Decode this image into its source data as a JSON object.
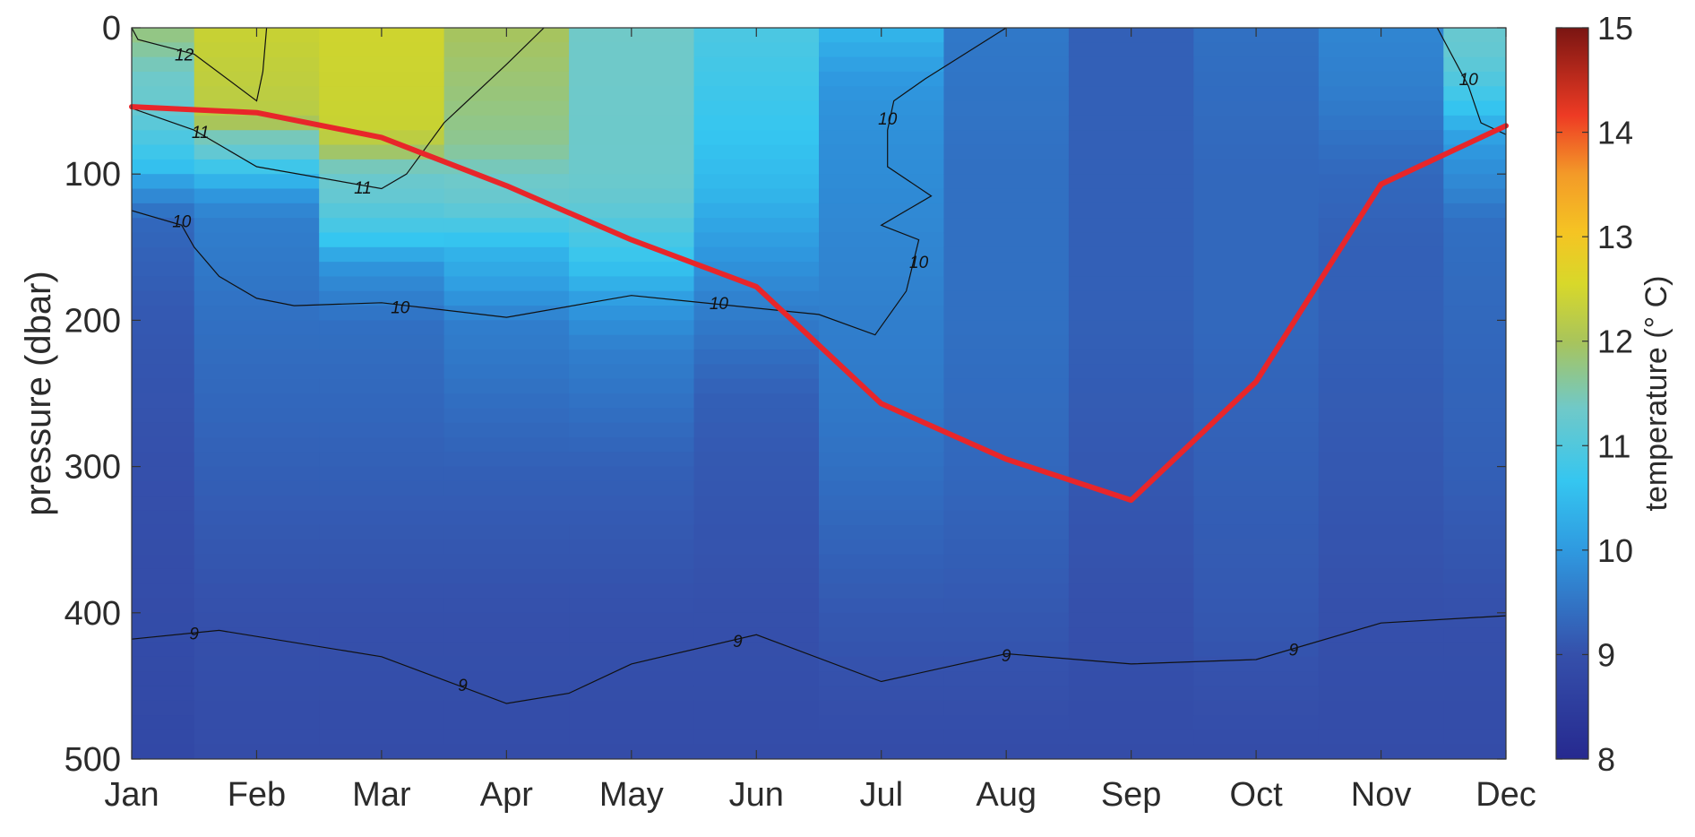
{
  "chart_data": {
    "type": "heatmap",
    "x_categories": [
      "Jan",
      "Feb",
      "Mar",
      "Apr",
      "May",
      "Jun",
      "Jul",
      "Aug",
      "Sep",
      "Oct",
      "Nov",
      "Dec"
    ],
    "y_ticks": [
      0,
      100,
      200,
      300,
      400,
      500
    ],
    "ylabel": "pressure (dbar)",
    "xlabel": "",
    "title": "",
    "ylim": [
      0,
      500
    ],
    "y_reversed": true,
    "colorbar": {
      "label": "temperature (° C)",
      "ticks": [
        8,
        9,
        10,
        11,
        12,
        13,
        14,
        15
      ],
      "range": [
        8,
        15
      ],
      "colormap": "parula"
    },
    "temperature_profiles": [
      {
        "month": "Jan",
        "pressure": [
          0,
          50,
          100,
          130,
          200,
          300,
          400,
          500
        ],
        "temp": [
          11.3,
          10.8,
          10.2,
          9.3,
          9.1,
          9.0,
          8.9,
          8.8
        ]
      },
      {
        "month": "Feb",
        "pressure": [
          0,
          60,
          90,
          130,
          200,
          300,
          400,
          500
        ],
        "temp": [
          11.8,
          11.6,
          10.5,
          9.6,
          9.4,
          9.2,
          9.0,
          8.9
        ]
      },
      {
        "month": "Mar",
        "pressure": [
          0,
          70,
          100,
          140,
          170,
          200,
          300,
          400,
          500
        ],
        "temp": [
          12.0,
          11.8,
          10.9,
          10.4,
          9.8,
          9.4,
          9.2,
          9.0,
          8.9
        ]
      },
      {
        "month": "Apr",
        "pressure": [
          0,
          80,
          110,
          150,
          180,
          200,
          300,
          400,
          500
        ],
        "temp": [
          11.4,
          11.2,
          10.9,
          10.2,
          10.0,
          9.6,
          9.2,
          9.0,
          8.9
        ]
      },
      {
        "month": "May",
        "pressure": [
          0,
          100,
          140,
          180,
          220,
          300,
          400,
          500
        ],
        "temp": [
          11.0,
          10.9,
          10.5,
          10.1,
          9.6,
          9.2,
          9.0,
          8.9
        ]
      },
      {
        "month": "Jun",
        "pressure": [
          0,
          110,
          150,
          190,
          250,
          300,
          400,
          500
        ],
        "temp": [
          10.5,
          10.2,
          10.0,
          9.6,
          9.2,
          9.1,
          9.0,
          8.9
        ]
      },
      {
        "month": "Jul",
        "pressure": [
          0,
          50,
          100,
          150,
          200,
          260,
          300,
          400,
          500
        ],
        "temp": [
          10.2,
          9.9,
          9.8,
          9.7,
          9.6,
          9.5,
          9.4,
          9.1,
          8.9
        ]
      },
      {
        "month": "Aug",
        "pressure": [
          0,
          100,
          200,
          300,
          400,
          500
        ],
        "temp": [
          9.5,
          9.4,
          9.4,
          9.3,
          9.1,
          8.9
        ]
      },
      {
        "month": "Sep",
        "pressure": [
          0,
          100,
          200,
          300,
          400,
          500
        ],
        "temp": [
          9.2,
          9.2,
          9.2,
          9.1,
          9.0,
          8.9
        ]
      },
      {
        "month": "Oct",
        "pressure": [
          0,
          100,
          200,
          300,
          400,
          500
        ],
        "temp": [
          9.4,
          9.3,
          9.3,
          9.2,
          9.1,
          8.9
        ]
      },
      {
        "month": "Nov",
        "pressure": [
          0,
          40,
          100,
          150,
          200,
          300,
          400,
          500
        ],
        "temp": [
          9.7,
          9.6,
          9.3,
          9.2,
          9.2,
          9.1,
          9.0,
          8.9
        ]
      },
      {
        "month": "Dec",
        "pressure": [
          0,
          30,
          70,
          110,
          130,
          200,
          300,
          400,
          500
        ],
        "temp": [
          10.8,
          10.6,
          10.1,
          9.7,
          9.4,
          9.3,
          9.2,
          9.0,
          8.9
        ]
      }
    ],
    "series": [
      {
        "type": "line",
        "color": "#e8262a",
        "x": [
          "Jan",
          "Feb",
          "Mar",
          "Apr",
          "May",
          "Jun",
          "Jul",
          "Aug",
          "Sep",
          "Oct",
          "Nov",
          "Dec"
        ],
        "values": [
          54,
          58,
          75,
          108,
          145,
          177,
          257,
          295,
          323,
          242,
          107,
          67
        ]
      }
    ],
    "contours": [
      {
        "level": 12,
        "label": "12",
        "points": [
          [
            0.0,
            0
          ],
          [
            0.05,
            8
          ],
          [
            0.5,
            18
          ],
          [
            1.0,
            50
          ],
          [
            1.05,
            30
          ],
          [
            1.08,
            0
          ]
        ],
        "labels_at": [
          [
            0.42,
            18
          ]
        ]
      },
      {
        "level": 11,
        "label": "11",
        "points": [
          [
            0,
            55
          ],
          [
            0.5,
            70
          ],
          [
            1.0,
            95
          ],
          [
            2.0,
            110
          ],
          [
            2.2,
            100
          ],
          [
            2.5,
            65
          ],
          [
            3.0,
            25
          ],
          [
            3.3,
            0
          ]
        ],
        "labels_at": [
          [
            0.55,
            71
          ],
          [
            1.85,
            109
          ]
        ]
      },
      {
        "level": 10,
        "label": "10",
        "points": [
          [
            0,
            125
          ],
          [
            0.4,
            135
          ],
          [
            0.5,
            150
          ],
          [
            0.7,
            170
          ],
          [
            1.0,
            185
          ],
          [
            1.3,
            190
          ],
          [
            2.0,
            188
          ],
          [
            3.0,
            198
          ],
          [
            4.0,
            183
          ],
          [
            5.5,
            196
          ],
          [
            5.95,
            210
          ],
          [
            6.2,
            180
          ],
          [
            6.3,
            145
          ],
          [
            6.0,
            135
          ],
          [
            6.4,
            115
          ],
          [
            6.05,
            95
          ],
          [
            6.05,
            70
          ],
          [
            6.1,
            50
          ],
          [
            6.35,
            35
          ],
          [
            7.0,
            0
          ]
        ],
        "labels_at": [
          [
            0.4,
            132
          ],
          [
            2.15,
            191
          ],
          [
            4.7,
            188
          ],
          [
            6.3,
            160
          ],
          [
            6.05,
            62
          ]
        ]
      },
      {
        "level": 10,
        "label": "10",
        "points": [
          [
            10.45,
            0
          ],
          [
            10.7,
            40
          ],
          [
            10.8,
            65
          ],
          [
            11.3,
            85
          ],
          [
            12.0,
            95
          ]
        ],
        "labels_at": [
          [
            10.7,
            35
          ]
        ]
      },
      {
        "level": 9,
        "label": "9",
        "points": [
          [
            0,
            418
          ],
          [
            0.7,
            412
          ],
          [
            2.0,
            430
          ],
          [
            3.0,
            462
          ],
          [
            3.5,
            455
          ],
          [
            4.0,
            435
          ],
          [
            5.0,
            415
          ],
          [
            6.0,
            447
          ],
          [
            7.0,
            428
          ],
          [
            8.0,
            435
          ],
          [
            9.0,
            432
          ],
          [
            10.0,
            407
          ],
          [
            11.0,
            402
          ]
        ],
        "labels_at": [
          [
            0.5,
            414
          ],
          [
            2.65,
            449
          ],
          [
            4.85,
            419
          ],
          [
            7.0,
            429
          ],
          [
            9.3,
            425
          ]
        ]
      }
    ]
  }
}
